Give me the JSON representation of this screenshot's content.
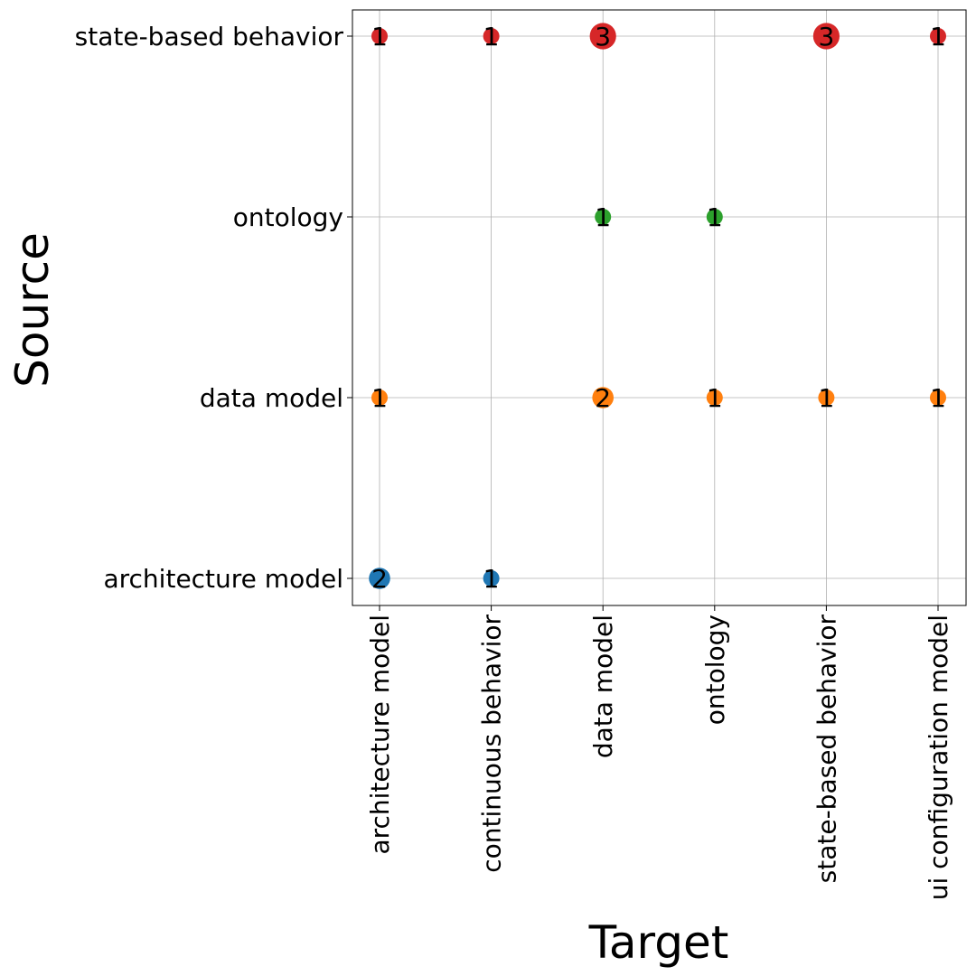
{
  "chart_data": {
    "type": "scatter",
    "xlabel": "Target",
    "ylabel": "Source",
    "x_categories": [
      "architecture model",
      "continuous behavior",
      "data model",
      "ontology",
      "state-based behavior",
      "ui configuration model"
    ],
    "y_categories": [
      "architecture model",
      "data model",
      "ontology",
      "state-based behavior"
    ],
    "grid": true,
    "series": [
      {
        "color": "#1f77b4",
        "points": [
          {
            "x": "architecture model",
            "y": "architecture model",
            "count": 2
          },
          {
            "x": "continuous behavior",
            "y": "architecture model",
            "count": 1
          }
        ]
      },
      {
        "color": "#ff7f0e",
        "points": [
          {
            "x": "architecture model",
            "y": "data model",
            "count": 1
          },
          {
            "x": "data model",
            "y": "data model",
            "count": 2
          },
          {
            "x": "ontology",
            "y": "data model",
            "count": 1
          },
          {
            "x": "state-based behavior",
            "y": "data model",
            "count": 1
          },
          {
            "x": "ui configuration model",
            "y": "data model",
            "count": 1
          }
        ]
      },
      {
        "color": "#2ca02c",
        "points": [
          {
            "x": "data model",
            "y": "ontology",
            "count": 1
          },
          {
            "x": "ontology",
            "y": "ontology",
            "count": 1
          }
        ]
      },
      {
        "color": "#d62728",
        "points": [
          {
            "x": "architecture model",
            "y": "state-based behavior",
            "count": 1
          },
          {
            "x": "continuous behavior",
            "y": "state-based behavior",
            "count": 1
          },
          {
            "x": "data model",
            "y": "state-based behavior",
            "count": 3
          },
          {
            "x": "state-based behavior",
            "y": "state-based behavior",
            "count": 3
          },
          {
            "x": "ui configuration model",
            "y": "state-based behavior",
            "count": 1
          }
        ]
      }
    ]
  }
}
